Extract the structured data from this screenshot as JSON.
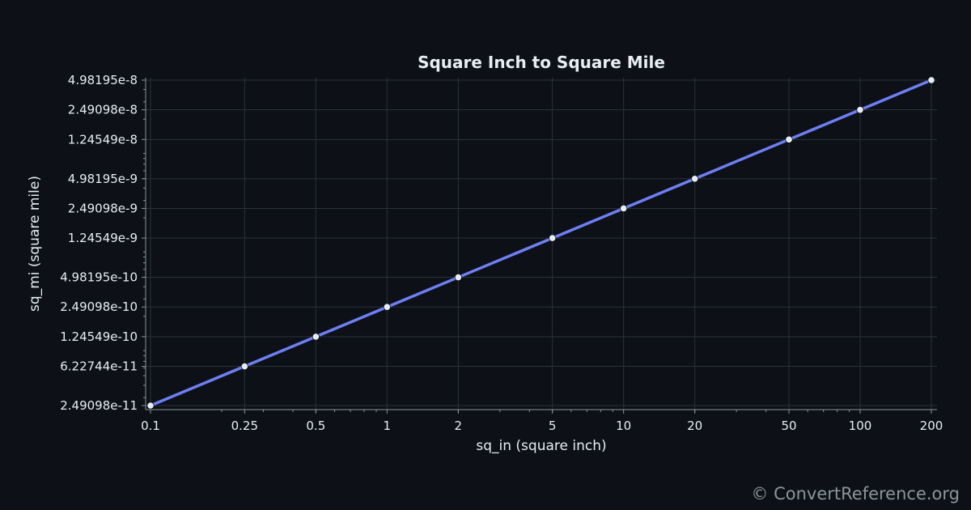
{
  "watermark": "© ConvertReference.org",
  "colors": {
    "background": "#0d1117",
    "line": "#6e7ff3",
    "marker": "#e6edf3",
    "grid": "#2a313b",
    "text": "#e6edf3"
  },
  "chart_data": {
    "type": "line",
    "title": "Square Inch to Square Mile",
    "xlabel": "sq_in (square inch)",
    "ylabel": "sq_mi (square mile)",
    "x_scale": "log",
    "y_scale": "log",
    "grid": true,
    "xlim": [
      0.1,
      200
    ],
    "ylim": [
      2.49098e-11,
      4.98195e-08
    ],
    "x_ticks": [
      "0.1",
      "0.25",
      "0.5",
      "1",
      "2",
      "5",
      "10",
      "20",
      "50",
      "100",
      "200"
    ],
    "y_ticks": [
      "2.49098e-11",
      "6.22744e-11",
      "1.24549e-10",
      "2.49098e-10",
      "4.98195e-10",
      "1.24549e-9",
      "2.49098e-9",
      "4.98195e-9",
      "1.24549e-8",
      "2.49098e-8",
      "4.98195e-8"
    ],
    "series": [
      {
        "x": [
          0.1,
          0.25,
          0.5,
          1,
          2,
          5,
          10,
          20,
          50,
          100,
          200
        ],
        "values": [
          2.49098e-11,
          6.22744e-11,
          1.24549e-10,
          2.49098e-10,
          4.98195e-10,
          1.24549e-09,
          2.49098e-09,
          4.98195e-09,
          1.24549e-08,
          2.49098e-08,
          4.98195e-08
        ]
      }
    ]
  }
}
